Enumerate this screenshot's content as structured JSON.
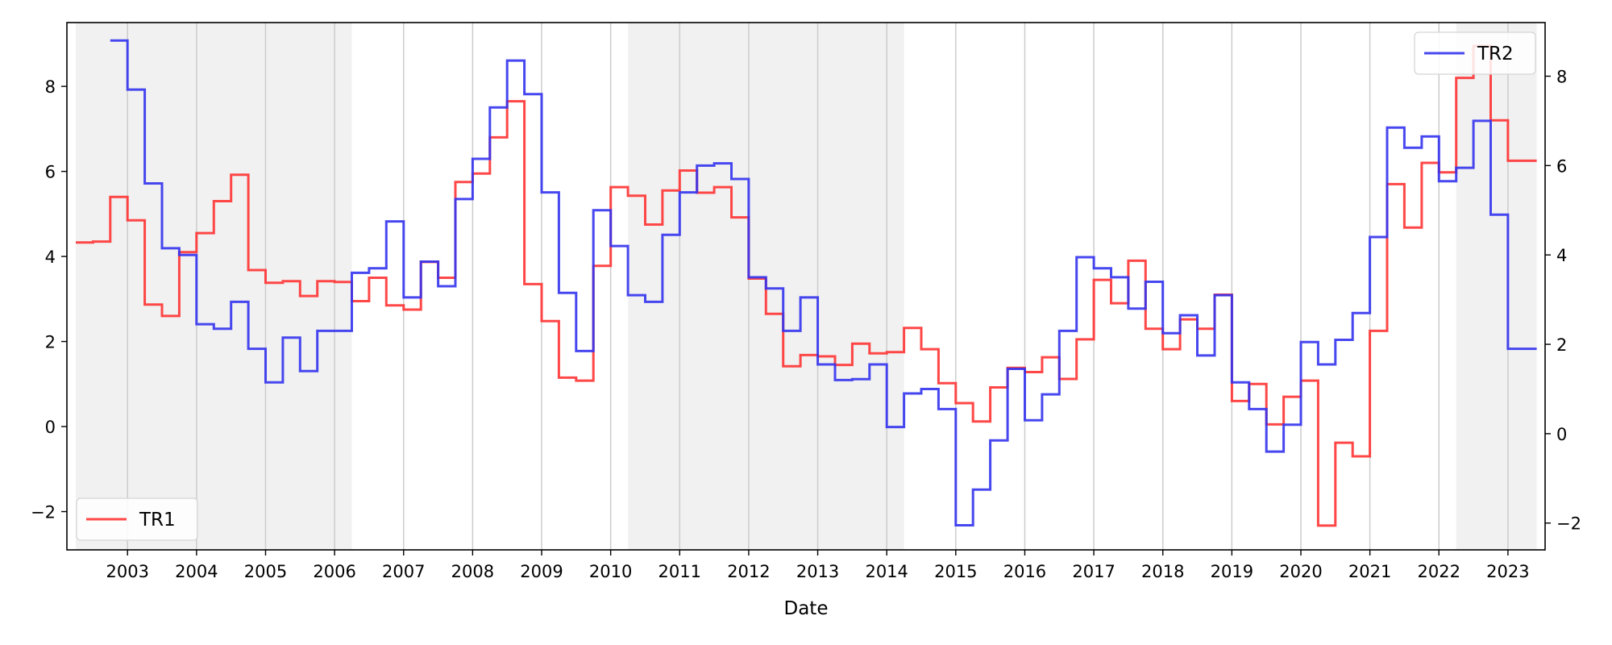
{
  "chart_data": {
    "type": "line",
    "title": "",
    "xlabel": "Date",
    "x_ticks": [
      "2003",
      "2004",
      "2005",
      "2006",
      "2007",
      "2008",
      "2009",
      "2010",
      "2011",
      "2012",
      "2013",
      "2014",
      "2015",
      "2016",
      "2017",
      "2018",
      "2019",
      "2020",
      "2021",
      "2022",
      "2023"
    ],
    "y_left_ticks": [
      "−2",
      "0",
      "2",
      "4",
      "6",
      "8"
    ],
    "y_right_ticks": [
      "−2",
      "0",
      "2",
      "4",
      "6",
      "8"
    ],
    "y_left_lim": [
      -2.9,
      9.5
    ],
    "y_right_lim": [
      -2.6,
      9.2
    ],
    "x_lim": [
      "2002-02-15",
      "2023-07-15"
    ],
    "shaded_periods": [
      [
        "2002-04",
        "2006-04"
      ],
      [
        "2010-04",
        "2014-04"
      ],
      [
        "2022-04",
        "2023-06"
      ]
    ],
    "grid": "vertical",
    "legends": [
      {
        "series": "TR1",
        "axis": "left",
        "placement": "lower-left"
      },
      {
        "series": "TR2",
        "axis": "right",
        "placement": "upper-right"
      }
    ],
    "series": [
      {
        "name": "TR1",
        "axis": "left",
        "color": "#ff3333",
        "points": [
          [
            "2002-04",
            4.33
          ],
          [
            "2002-07",
            4.35
          ],
          [
            "2002-10",
            5.4
          ],
          [
            "2003-01",
            4.85
          ],
          [
            "2003-04",
            2.87
          ],
          [
            "2003-07",
            2.6
          ],
          [
            "2003-10",
            4.1
          ],
          [
            "2004-01",
            4.55
          ],
          [
            "2004-04",
            5.3
          ],
          [
            "2004-07",
            5.92
          ],
          [
            "2004-10",
            3.68
          ],
          [
            "2005-01",
            3.38
          ],
          [
            "2005-04",
            3.42
          ],
          [
            "2005-07",
            3.07
          ],
          [
            "2005-10",
            3.42
          ],
          [
            "2006-01",
            3.4
          ],
          [
            "2006-04",
            2.95
          ],
          [
            "2006-07",
            3.5
          ],
          [
            "2006-10",
            2.85
          ],
          [
            "2007-01",
            2.75
          ],
          [
            "2007-04",
            3.87
          ],
          [
            "2007-07",
            3.5
          ],
          [
            "2007-10",
            5.75
          ],
          [
            "2008-01",
            5.95
          ],
          [
            "2008-04",
            6.8
          ],
          [
            "2008-07",
            7.65
          ],
          [
            "2008-10",
            3.35
          ],
          [
            "2009-01",
            2.48
          ],
          [
            "2009-04",
            1.15
          ],
          [
            "2009-07",
            1.08
          ],
          [
            "2009-10",
            3.78
          ],
          [
            "2010-01",
            5.63
          ],
          [
            "2010-04",
            5.43
          ],
          [
            "2010-07",
            4.75
          ],
          [
            "2010-10",
            5.55
          ],
          [
            "2011-01",
            6.02
          ],
          [
            "2011-04",
            5.5
          ],
          [
            "2011-07",
            5.63
          ],
          [
            "2011-10",
            4.92
          ],
          [
            "2012-01",
            3.48
          ],
          [
            "2012-04",
            2.65
          ],
          [
            "2012-07",
            1.42
          ],
          [
            "2012-10",
            1.68
          ],
          [
            "2013-01",
            1.65
          ],
          [
            "2013-04",
            1.45
          ],
          [
            "2013-07",
            1.95
          ],
          [
            "2013-10",
            1.72
          ],
          [
            "2014-01",
            1.75
          ],
          [
            "2014-04",
            2.32
          ],
          [
            "2014-07",
            1.82
          ],
          [
            "2014-10",
            1.02
          ],
          [
            "2015-01",
            0.55
          ],
          [
            "2015-04",
            0.12
          ],
          [
            "2015-07",
            0.92
          ],
          [
            "2015-10",
            1.38
          ],
          [
            "2016-01",
            1.28
          ],
          [
            "2016-04",
            1.63
          ],
          [
            "2016-07",
            1.12
          ],
          [
            "2016-10",
            2.05
          ],
          [
            "2017-01",
            3.45
          ],
          [
            "2017-04",
            2.9
          ],
          [
            "2017-07",
            3.9
          ],
          [
            "2017-10",
            2.3
          ],
          [
            "2018-01",
            1.82
          ],
          [
            "2018-04",
            2.52
          ],
          [
            "2018-07",
            2.3
          ],
          [
            "2018-10",
            3.1
          ],
          [
            "2019-01",
            0.6
          ],
          [
            "2019-04",
            1.0
          ],
          [
            "2019-07",
            0.05
          ],
          [
            "2019-10",
            0.7
          ],
          [
            "2020-01",
            1.08
          ],
          [
            "2020-04",
            -2.33
          ],
          [
            "2020-07",
            -0.38
          ],
          [
            "2020-10",
            -0.7
          ],
          [
            "2021-01",
            2.25
          ],
          [
            "2021-04",
            5.7
          ],
          [
            "2021-07",
            4.68
          ],
          [
            "2021-10",
            6.2
          ],
          [
            "2022-01",
            5.98
          ],
          [
            "2022-04",
            8.2
          ],
          [
            "2022-07",
            8.95
          ],
          [
            "2022-10",
            7.2
          ],
          [
            "2023-01",
            6.25
          ],
          [
            "2023-06",
            6.25
          ]
        ]
      },
      {
        "name": "TR2",
        "axis": "right",
        "color": "#3333ee",
        "points": [
          [
            "2002-10",
            8.8
          ],
          [
            "2003-01",
            7.7
          ],
          [
            "2003-04",
            5.6
          ],
          [
            "2003-07",
            4.15
          ],
          [
            "2003-10",
            4.0
          ],
          [
            "2004-01",
            2.45
          ],
          [
            "2004-04",
            2.35
          ],
          [
            "2004-07",
            2.95
          ],
          [
            "2004-10",
            1.9
          ],
          [
            "2005-01",
            1.15
          ],
          [
            "2005-04",
            2.15
          ],
          [
            "2005-07",
            1.4
          ],
          [
            "2005-10",
            2.3
          ],
          [
            "2006-04",
            3.6
          ],
          [
            "2006-07",
            3.7
          ],
          [
            "2006-10",
            4.75
          ],
          [
            "2007-01",
            3.05
          ],
          [
            "2007-04",
            3.85
          ],
          [
            "2007-07",
            3.3
          ],
          [
            "2007-10",
            5.25
          ],
          [
            "2008-01",
            6.15
          ],
          [
            "2008-04",
            7.3
          ],
          [
            "2008-07",
            8.35
          ],
          [
            "2008-10",
            7.6
          ],
          [
            "2009-01",
            5.4
          ],
          [
            "2009-04",
            3.15
          ],
          [
            "2009-07",
            1.85
          ],
          [
            "2009-10",
            5.0
          ],
          [
            "2010-01",
            4.2
          ],
          [
            "2010-04",
            3.1
          ],
          [
            "2010-07",
            2.95
          ],
          [
            "2010-10",
            4.45
          ],
          [
            "2011-01",
            5.4
          ],
          [
            "2011-04",
            6.0
          ],
          [
            "2011-07",
            6.05
          ],
          [
            "2011-10",
            5.7
          ],
          [
            "2012-01",
            3.5
          ],
          [
            "2012-04",
            3.25
          ],
          [
            "2012-07",
            2.3
          ],
          [
            "2012-10",
            3.05
          ],
          [
            "2013-01",
            1.55
          ],
          [
            "2013-04",
            1.2
          ],
          [
            "2013-07",
            1.22
          ],
          [
            "2013-10",
            1.55
          ],
          [
            "2014-01",
            0.15
          ],
          [
            "2014-04",
            0.9
          ],
          [
            "2014-07",
            1.0
          ],
          [
            "2014-10",
            0.55
          ],
          [
            "2015-01",
            -2.05
          ],
          [
            "2015-04",
            -1.25
          ],
          [
            "2015-07",
            -0.15
          ],
          [
            "2015-10",
            1.45
          ],
          [
            "2016-01",
            0.3
          ],
          [
            "2016-04",
            0.88
          ],
          [
            "2016-07",
            2.3
          ],
          [
            "2016-10",
            3.95
          ],
          [
            "2017-01",
            3.7
          ],
          [
            "2017-04",
            3.5
          ],
          [
            "2017-07",
            2.8
          ],
          [
            "2017-10",
            3.4
          ],
          [
            "2018-01",
            2.25
          ],
          [
            "2018-04",
            2.65
          ],
          [
            "2018-07",
            1.75
          ],
          [
            "2018-10",
            3.1
          ],
          [
            "2019-01",
            1.15
          ],
          [
            "2019-04",
            0.55
          ],
          [
            "2019-07",
            -0.4
          ],
          [
            "2019-10",
            0.2
          ],
          [
            "2020-01",
            2.05
          ],
          [
            "2020-04",
            1.55
          ],
          [
            "2020-07",
            2.1
          ],
          [
            "2020-10",
            2.7
          ],
          [
            "2021-01",
            4.4
          ],
          [
            "2021-04",
            6.85
          ],
          [
            "2021-07",
            6.4
          ],
          [
            "2021-10",
            6.65
          ],
          [
            "2022-01",
            5.65
          ],
          [
            "2022-04",
            5.95
          ],
          [
            "2022-07",
            7.0
          ],
          [
            "2022-10",
            4.9
          ],
          [
            "2023-01",
            1.9
          ],
          [
            "2023-06",
            1.9
          ]
        ]
      }
    ]
  }
}
